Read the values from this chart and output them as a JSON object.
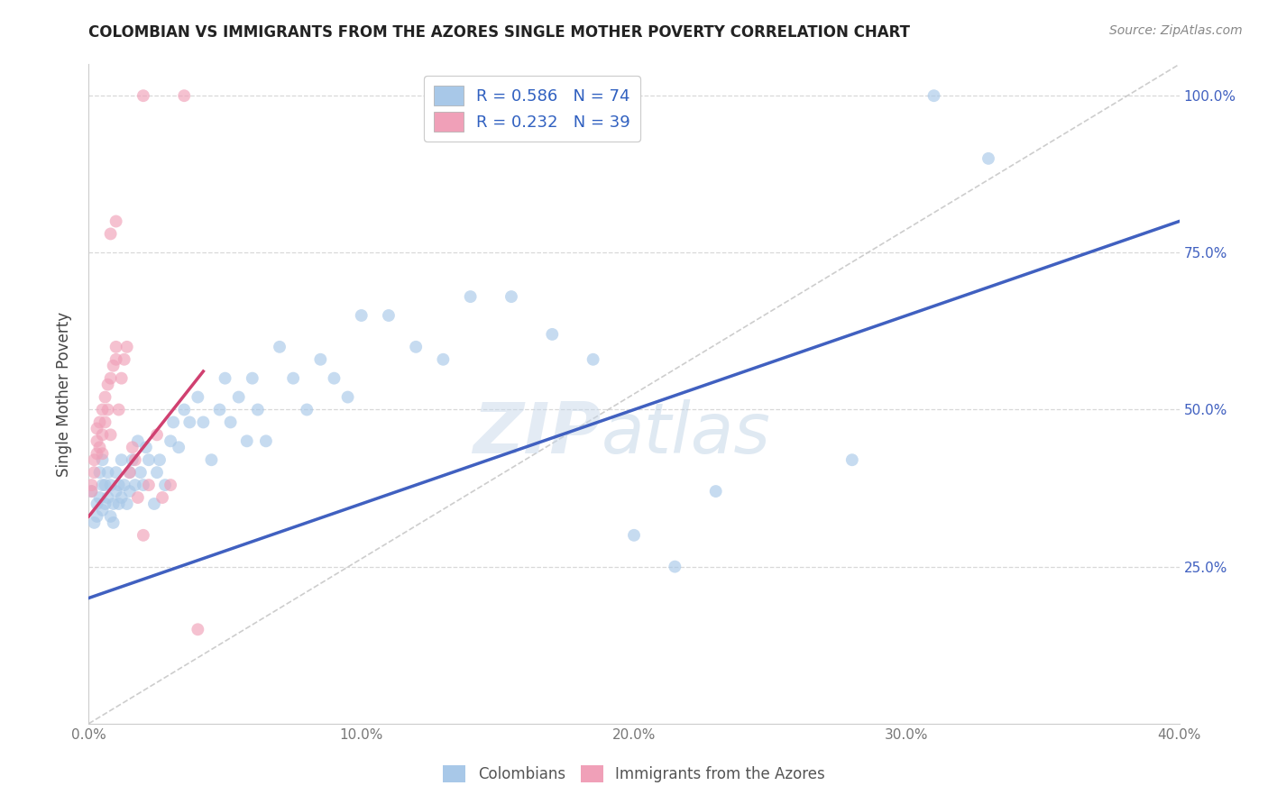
{
  "title": "COLOMBIAN VS IMMIGRANTS FROM THE AZORES SINGLE MOTHER POVERTY CORRELATION CHART",
  "source": "Source: ZipAtlas.com",
  "ylabel": "Single Mother Poverty",
  "ytick_labels_right": [
    "",
    "25.0%",
    "50.0%",
    "75.0%",
    "100.0%"
  ],
  "xtick_labels": [
    "0.0%",
    "10.0%",
    "20.0%",
    "30.0%",
    "40.0%"
  ],
  "watermark_zip": "ZIP",
  "watermark_atlas": "atlas",
  "blue_scatter_color": "#a8c8e8",
  "pink_scatter_color": "#f0a0b8",
  "blue_line_color": "#4060c0",
  "pink_line_color": "#d04070",
  "diag_color": "#c8c8c8",
  "grid_color": "#d8d8d8",
  "background_color": "#ffffff",
  "blue_R": 0.586,
  "pink_R": 0.232,
  "blue_N": 74,
  "pink_N": 39,
  "xmin": 0.0,
  "xmax": 0.4,
  "ymin": 0.0,
  "ymax": 1.05,
  "legend_label_color": "#3060c0",
  "right_axis_color": "#4060c0",
  "scatter_size": 100,
  "scatter_alpha": 0.65,
  "blue_x": [
    0.001,
    0.002,
    0.003,
    0.003,
    0.004,
    0.004,
    0.005,
    0.005,
    0.005,
    0.006,
    0.006,
    0.007,
    0.007,
    0.008,
    0.008,
    0.009,
    0.009,
    0.01,
    0.01,
    0.011,
    0.011,
    0.012,
    0.012,
    0.013,
    0.014,
    0.015,
    0.015,
    0.016,
    0.017,
    0.018,
    0.019,
    0.02,
    0.021,
    0.022,
    0.024,
    0.025,
    0.026,
    0.028,
    0.03,
    0.031,
    0.033,
    0.035,
    0.037,
    0.04,
    0.042,
    0.045,
    0.048,
    0.05,
    0.052,
    0.055,
    0.058,
    0.06,
    0.062,
    0.065,
    0.07,
    0.075,
    0.08,
    0.085,
    0.09,
    0.095,
    0.1,
    0.11,
    0.12,
    0.13,
    0.14,
    0.155,
    0.17,
    0.185,
    0.2,
    0.215,
    0.23,
    0.28,
    0.31,
    0.33
  ],
  "blue_y": [
    0.37,
    0.32,
    0.35,
    0.33,
    0.4,
    0.36,
    0.38,
    0.34,
    0.42,
    0.35,
    0.38,
    0.4,
    0.36,
    0.33,
    0.38,
    0.35,
    0.32,
    0.37,
    0.4,
    0.38,
    0.35,
    0.42,
    0.36,
    0.38,
    0.35,
    0.4,
    0.37,
    0.42,
    0.38,
    0.45,
    0.4,
    0.38,
    0.44,
    0.42,
    0.35,
    0.4,
    0.42,
    0.38,
    0.45,
    0.48,
    0.44,
    0.5,
    0.48,
    0.52,
    0.48,
    0.42,
    0.5,
    0.55,
    0.48,
    0.52,
    0.45,
    0.55,
    0.5,
    0.45,
    0.6,
    0.55,
    0.5,
    0.58,
    0.55,
    0.52,
    0.65,
    0.65,
    0.6,
    0.58,
    0.68,
    0.68,
    0.62,
    0.58,
    0.3,
    0.25,
    0.37,
    0.42,
    1.0,
    0.9
  ],
  "pink_x": [
    0.001,
    0.001,
    0.002,
    0.002,
    0.003,
    0.003,
    0.003,
    0.004,
    0.004,
    0.005,
    0.005,
    0.005,
    0.006,
    0.006,
    0.007,
    0.007,
    0.008,
    0.008,
    0.009,
    0.01,
    0.01,
    0.011,
    0.012,
    0.013,
    0.014,
    0.015,
    0.016,
    0.017,
    0.018,
    0.02,
    0.022,
    0.025,
    0.027,
    0.03,
    0.02,
    0.035,
    0.008,
    0.01,
    0.04
  ],
  "pink_y": [
    0.38,
    0.37,
    0.42,
    0.4,
    0.45,
    0.43,
    0.47,
    0.48,
    0.44,
    0.46,
    0.5,
    0.43,
    0.52,
    0.48,
    0.54,
    0.5,
    0.46,
    0.55,
    0.57,
    0.58,
    0.6,
    0.5,
    0.55,
    0.58,
    0.6,
    0.4,
    0.44,
    0.42,
    0.36,
    0.3,
    0.38,
    0.46,
    0.36,
    0.38,
    1.0,
    1.0,
    0.78,
    0.8,
    0.15
  ]
}
